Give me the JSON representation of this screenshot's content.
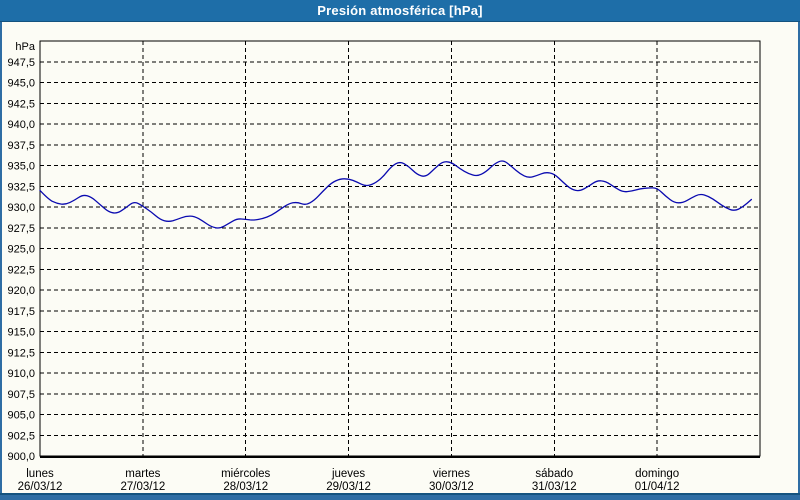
{
  "window": {
    "title_bar": {
      "label": "Presión atmosférica [hPa]"
    },
    "colors": {
      "accent": "#1e6ea8",
      "accent_dark": "#14537f",
      "frame": "#2e6da4",
      "canvas_bg": "#fcfcf5"
    }
  },
  "chart_data": {
    "type": "line",
    "title": "Presión atmosférica [hPa]",
    "unit_label": "hPa",
    "ylim": [
      900,
      950
    ],
    "ytick_step": 2.5,
    "grid": "dashed",
    "grid_color": "#000000",
    "axis_color": "#000000",
    "line_color": "#0a0ab0",
    "legend": "none",
    "x_total_hours": 168,
    "sample_step_hours": 2,
    "yticks": [
      {
        "v": 947.5,
        "label": "947,5"
      },
      {
        "v": 945.0,
        "label": "945,0"
      },
      {
        "v": 942.5,
        "label": "942,5"
      },
      {
        "v": 940.0,
        "label": "940,0"
      },
      {
        "v": 937.5,
        "label": "937,5"
      },
      {
        "v": 935.0,
        "label": "935,0"
      },
      {
        "v": 932.5,
        "label": "932,5"
      },
      {
        "v": 930.0,
        "label": "930,0"
      },
      {
        "v": 927.5,
        "label": "927,5"
      },
      {
        "v": 925.0,
        "label": "925,0"
      },
      {
        "v": 922.5,
        "label": "922,5"
      },
      {
        "v": 920.0,
        "label": "920,0"
      },
      {
        "v": 917.5,
        "label": "917,5"
      },
      {
        "v": 915.0,
        "label": "915,0"
      },
      {
        "v": 912.5,
        "label": "912,5"
      },
      {
        "v": 910.0,
        "label": "910,0"
      },
      {
        "v": 907.5,
        "label": "907,5"
      },
      {
        "v": 905.0,
        "label": "905,0"
      },
      {
        "v": 902.5,
        "label": "902,5"
      },
      {
        "v": 900.0,
        "label": "900,0"
      }
    ],
    "days": [
      {
        "name": "lunes",
        "date": "26/03/12"
      },
      {
        "name": "martes",
        "date": "27/03/12"
      },
      {
        "name": "miércoles",
        "date": "28/03/12"
      },
      {
        "name": "jueves",
        "date": "29/03/12"
      },
      {
        "name": "viernes",
        "date": "30/03/12"
      },
      {
        "name": "sábado",
        "date": "31/03/12"
      },
      {
        "name": "domingo",
        "date": "01/04/12"
      }
    ],
    "values_hpa": [
      932.0,
      930.9,
      930.4,
      930.3,
      930.8,
      931.5,
      931.2,
      930.3,
      929.4,
      929.2,
      929.9,
      930.7,
      930.1,
      929.4,
      928.5,
      928.2,
      928.5,
      928.9,
      928.9,
      928.3,
      927.6,
      927.4,
      928.0,
      928.6,
      928.5,
      928.4,
      928.6,
      929.0,
      929.7,
      930.4,
      930.6,
      930.2,
      930.8,
      931.9,
      932.9,
      933.4,
      933.4,
      933.0,
      932.5,
      932.8,
      933.6,
      934.9,
      935.5,
      934.9,
      933.9,
      933.6,
      934.6,
      935.5,
      935.4,
      934.6,
      934.0,
      933.7,
      934.2,
      935.2,
      935.7,
      934.9,
      934.0,
      933.5,
      933.8,
      934.2,
      934.0,
      933.0,
      932.1,
      931.9,
      932.5,
      933.2,
      933.1,
      932.4,
      931.8,
      931.9,
      932.2,
      932.3,
      932.3,
      931.3,
      930.5,
      930.5,
      931.1,
      931.6,
      931.3,
      930.6,
      929.9,
      929.5,
      930.0,
      930.9
    ]
  }
}
